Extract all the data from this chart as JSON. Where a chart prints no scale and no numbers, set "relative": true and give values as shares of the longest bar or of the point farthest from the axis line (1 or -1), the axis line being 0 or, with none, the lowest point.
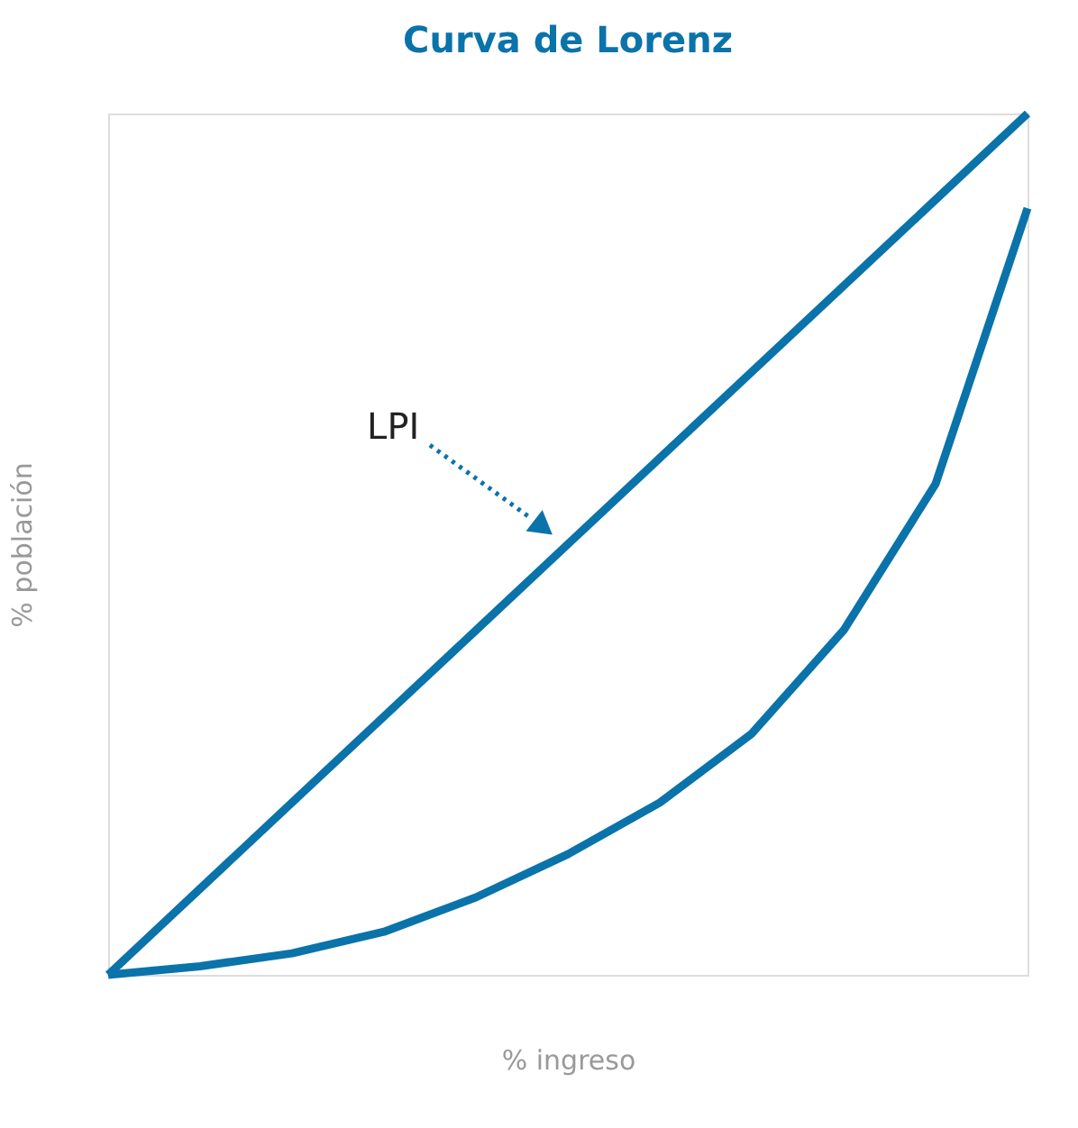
{
  "chart_data": {
    "type": "line",
    "title": "Curva de Lorenz",
    "xlabel": "% ingreso",
    "ylabel": "% población",
    "relative": true,
    "categories": [
      null,
      null,
      null,
      null,
      null,
      null,
      null,
      null,
      null,
      null,
      null
    ],
    "series": [
      {
        "color": "#0a73aa",
        "values": [
          0,
          0.1,
          0.2,
          0.3,
          0.4,
          0.5,
          0.6,
          0.7,
          0.8,
          0.9,
          1
        ]
      },
      {
        "color": "#0a73aa",
        "values": [
          0,
          0.01,
          0.025,
          0.05,
          0.09,
          0.14,
          0.2,
          0.28,
          0.4,
          0.57,
          0.89
        ]
      }
    ],
    "annotations": [
      "LPI"
    ],
    "grid": false,
    "legend": false,
    "marker": "none",
    "line_style": "solid"
  }
}
